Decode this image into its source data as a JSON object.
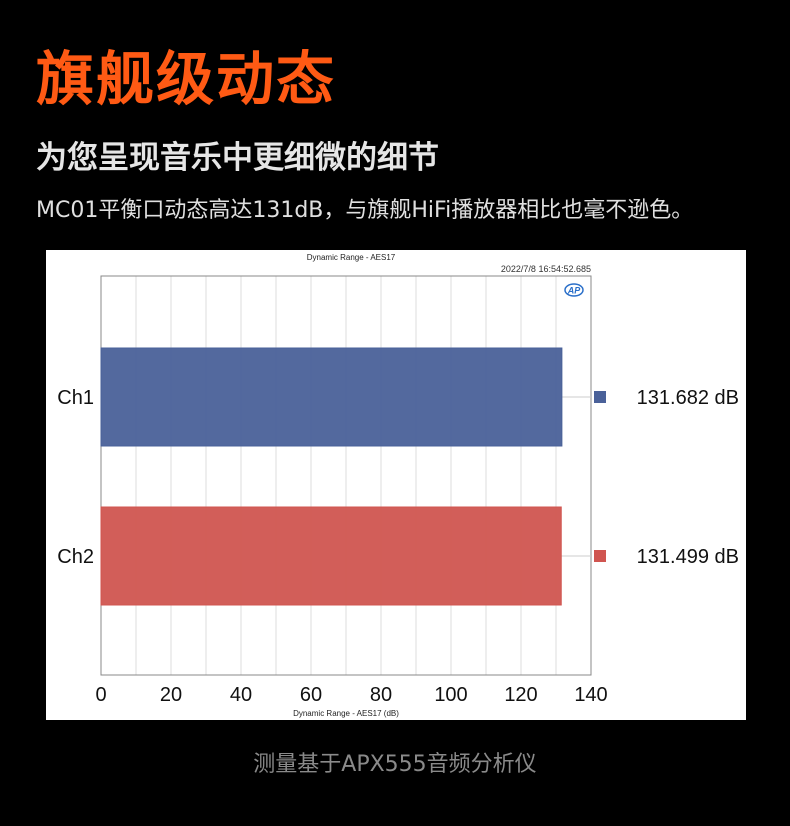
{
  "header": {
    "headline": "旗舰级动态",
    "subheadline": "为您呈现音乐中更细微的细节",
    "description": "MC01平衡口动态高达131dB，与旗舰HiFi播放器相比也毫不逊色。"
  },
  "footer": {
    "note": "测量基于APX555音频分析仪"
  },
  "chart_data": {
    "type": "bar",
    "orientation": "horizontal",
    "title": "Dynamic Range - AES17",
    "timestamp": "2022/7/8 16:54:52.685",
    "logo": "AP",
    "xlabel": "Dynamic Range - AES17 (dB)",
    "ylabel": "",
    "categories": [
      "Ch1",
      "Ch2"
    ],
    "values": [
      131.682,
      131.499
    ],
    "value_labels": [
      "131.682 dB",
      "131.499 dB"
    ],
    "colors": [
      "#4a6199",
      "#d05550"
    ],
    "xlim": [
      0,
      140
    ],
    "xticks": [
      0,
      20,
      40,
      60,
      80,
      100,
      120,
      140
    ],
    "grid": true,
    "legend": "right"
  }
}
